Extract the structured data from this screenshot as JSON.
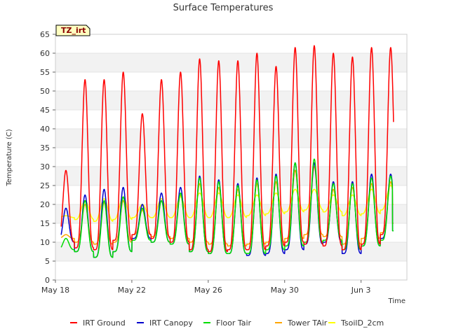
{
  "chart_data": {
    "type": "line",
    "title": "Surface Temperatures",
    "xlabel": "Time",
    "ylabel": "Temperature (C)",
    "badge": "TZ_irt",
    "ylim": [
      0,
      65
    ],
    "yticks": [
      0,
      5,
      10,
      15,
      20,
      25,
      30,
      35,
      40,
      45,
      50,
      55,
      60,
      65
    ],
    "xlim_days": [
      0,
      18.4
    ],
    "xticks": [
      {
        "day": 0,
        "label": "May 18"
      },
      {
        "day": 4,
        "label": "May 22"
      },
      {
        "day": 8,
        "label": "May 26"
      },
      {
        "day": 12,
        "label": "May 30"
      },
      {
        "day": 16,
        "label": "Jun 3"
      }
    ],
    "grid": "horizontal bands",
    "legend_position": "bottom",
    "peak_day_offset": 0.55,
    "data_start_day": 0.3,
    "data_end_day": 17.7,
    "series": [
      {
        "name": "IRT Ground",
        "color": "#ff0000",
        "daily_min": [
          10,
          8.5,
          8,
          10.5,
          12,
          11,
          10,
          8,
          7.5,
          8,
          8,
          9,
          10,
          9.5,
          9,
          8,
          9.5,
          12
        ],
        "daily_max": [
          29,
          53,
          53,
          55,
          44,
          53,
          55,
          58.5,
          58,
          58,
          60,
          56.5,
          61.5,
          62,
          60,
          59,
          61.5,
          61.5
        ]
      },
      {
        "name": "IRT Canopy",
        "color": "#0000cc",
        "daily_min": [
          10,
          7.5,
          6,
          7.5,
          11,
          10,
          9.5,
          7.5,
          7,
          7,
          6.5,
          7,
          8,
          9.5,
          10,
          7,
          9,
          11
        ],
        "daily_max": [
          19,
          22.5,
          24,
          24.5,
          20,
          23,
          24.5,
          27.5,
          26.5,
          25.5,
          27,
          28,
          31,
          31,
          26,
          26,
          28,
          28
        ],
        "last_value": 13
      },
      {
        "name": "Floor Tair",
        "color": "#00dd00",
        "daily_min": [
          8,
          7.5,
          6,
          7.5,
          10.5,
          10,
          9.5,
          7.5,
          7,
          7,
          7,
          8,
          9,
          10,
          10.5,
          8,
          9,
          10.5
        ],
        "daily_max": [
          11,
          21,
          21,
          22,
          19,
          21,
          23,
          27,
          26,
          25,
          26.5,
          27.5,
          31,
          32,
          25.5,
          25.5,
          27,
          27.5
        ],
        "last_value": 13
      },
      {
        "name": "Tower TAir",
        "color": "#ffa500",
        "daily_min": [
          11,
          10,
          9.5,
          10,
          12,
          11.5,
          11,
          10,
          9.5,
          9,
          9.5,
          10,
          11,
          12,
          11.5,
          9.5,
          11,
          12.5
        ],
        "daily_max": [
          12,
          20,
          20.5,
          21,
          18.5,
          21,
          22.5,
          25.5,
          24.5,
          24,
          25.5,
          26,
          29,
          30,
          24,
          24.5,
          25.5,
          26
        ],
        "last_value": 15
      },
      {
        "name": "TsoilD_2cm",
        "color": "#ffff00",
        "daily_min": [
          16.5,
          16,
          15.5,
          16,
          16.5,
          16.5,
          16.5,
          16.5,
          16.5,
          16.5,
          17,
          17.5,
          18,
          18.5,
          18,
          17,
          17.5,
          18.5
        ],
        "daily_max": [
          17,
          21,
          21.5,
          22,
          20,
          21.5,
          22,
          23,
          23,
          22.5,
          22.5,
          23,
          24,
          24,
          22.5,
          22.5,
          24,
          25
        ],
        "last_value": 20
      }
    ]
  }
}
